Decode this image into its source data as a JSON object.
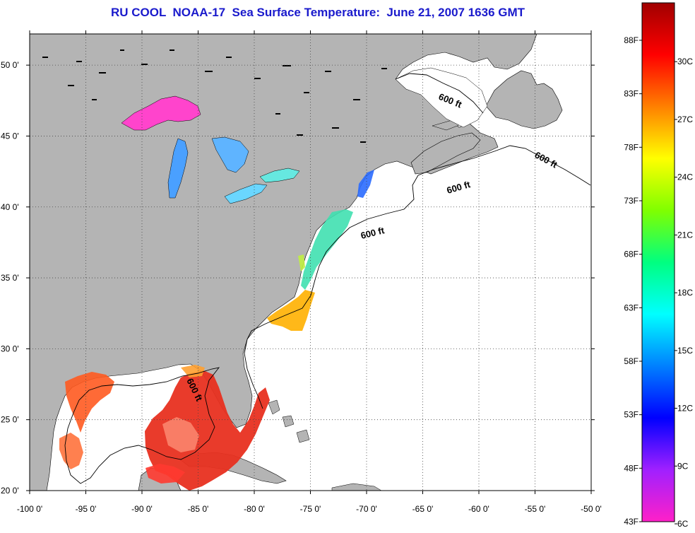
{
  "title": "RU COOL  NOAA-17  Sea Surface Temperature:  June 21, 2007 1636 GMT",
  "map": {
    "lon_ticks": [
      {
        "value": -100,
        "label": "-100 0'"
      },
      {
        "value": -95,
        "label": "-95 0'"
      },
      {
        "value": -90,
        "label": "-90 0'"
      },
      {
        "value": -85,
        "label": "-85 0'"
      },
      {
        "value": -80,
        "label": "-80 0'"
      },
      {
        "value": -75,
        "label": "-75 0'"
      },
      {
        "value": -70,
        "label": "-70 0'"
      },
      {
        "value": -65,
        "label": "-65 0'"
      },
      {
        "value": -60,
        "label": "-60 0'"
      },
      {
        "value": -55,
        "label": "-55 0'"
      },
      {
        "value": -50,
        "label": "-50 0'"
      }
    ],
    "lat_ticks": [
      {
        "value": 20,
        "label": "20 0'"
      },
      {
        "value": 25,
        "label": "25 0'"
      },
      {
        "value": 30,
        "label": "30 0'"
      },
      {
        "value": 35,
        "label": "35 0'"
      },
      {
        "value": 40,
        "label": "40 0'"
      },
      {
        "value": 45,
        "label": "45 0'"
      },
      {
        "value": 50,
        "label": "50 0'"
      }
    ],
    "isobath_labels": [
      "600 ft",
      "600 ft",
      "600 ft",
      "600 ft",
      "600 ft"
    ],
    "land_color": "#b4b4b4",
    "ocean_color": "#ffffff"
  },
  "colorbar": {
    "fahrenheit_labels": [
      "88F",
      "83F",
      "78F",
      "73F",
      "68F",
      "63F",
      "58F",
      "53F",
      "48F",
      "43F"
    ],
    "celsius_labels": [
      "30C",
      "27C",
      "24C",
      "21C",
      "18C",
      "15C",
      "12C",
      "9C",
      "6C"
    ],
    "colors": [
      "#ff20c8",
      "#a020ff",
      "#0000ff",
      "#0080ff",
      "#00ffff",
      "#00ff80",
      "#80ff00",
      "#ffff00",
      "#ff8000",
      "#ff0000",
      "#a00000"
    ]
  }
}
